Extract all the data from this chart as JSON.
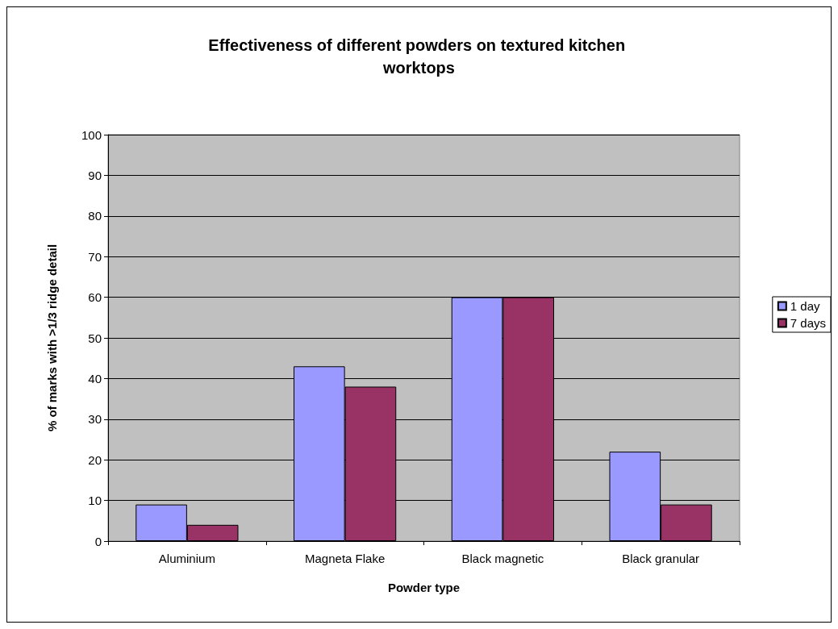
{
  "chart_data": {
    "type": "bar",
    "title": "Effectiveness of different powders on textured kitchen worktops",
    "xlabel": "Powder type",
    "ylabel": "% of marks with >1/3 ridge detail",
    "categories": [
      "Aluminium",
      "Magneta Flake",
      "Black magnetic",
      "Black granular"
    ],
    "series": [
      {
        "name": "1 day",
        "color": "#9999ff",
        "values": [
          9,
          43,
          60,
          22
        ]
      },
      {
        "name": "7 days",
        "color": "#993366",
        "values": [
          4,
          38,
          60,
          9
        ]
      }
    ],
    "ylim": [
      0,
      100
    ],
    "yticks": [
      0,
      10,
      20,
      30,
      40,
      50,
      60,
      70,
      80,
      90,
      100
    ],
    "grid": "y",
    "legend": "right"
  }
}
